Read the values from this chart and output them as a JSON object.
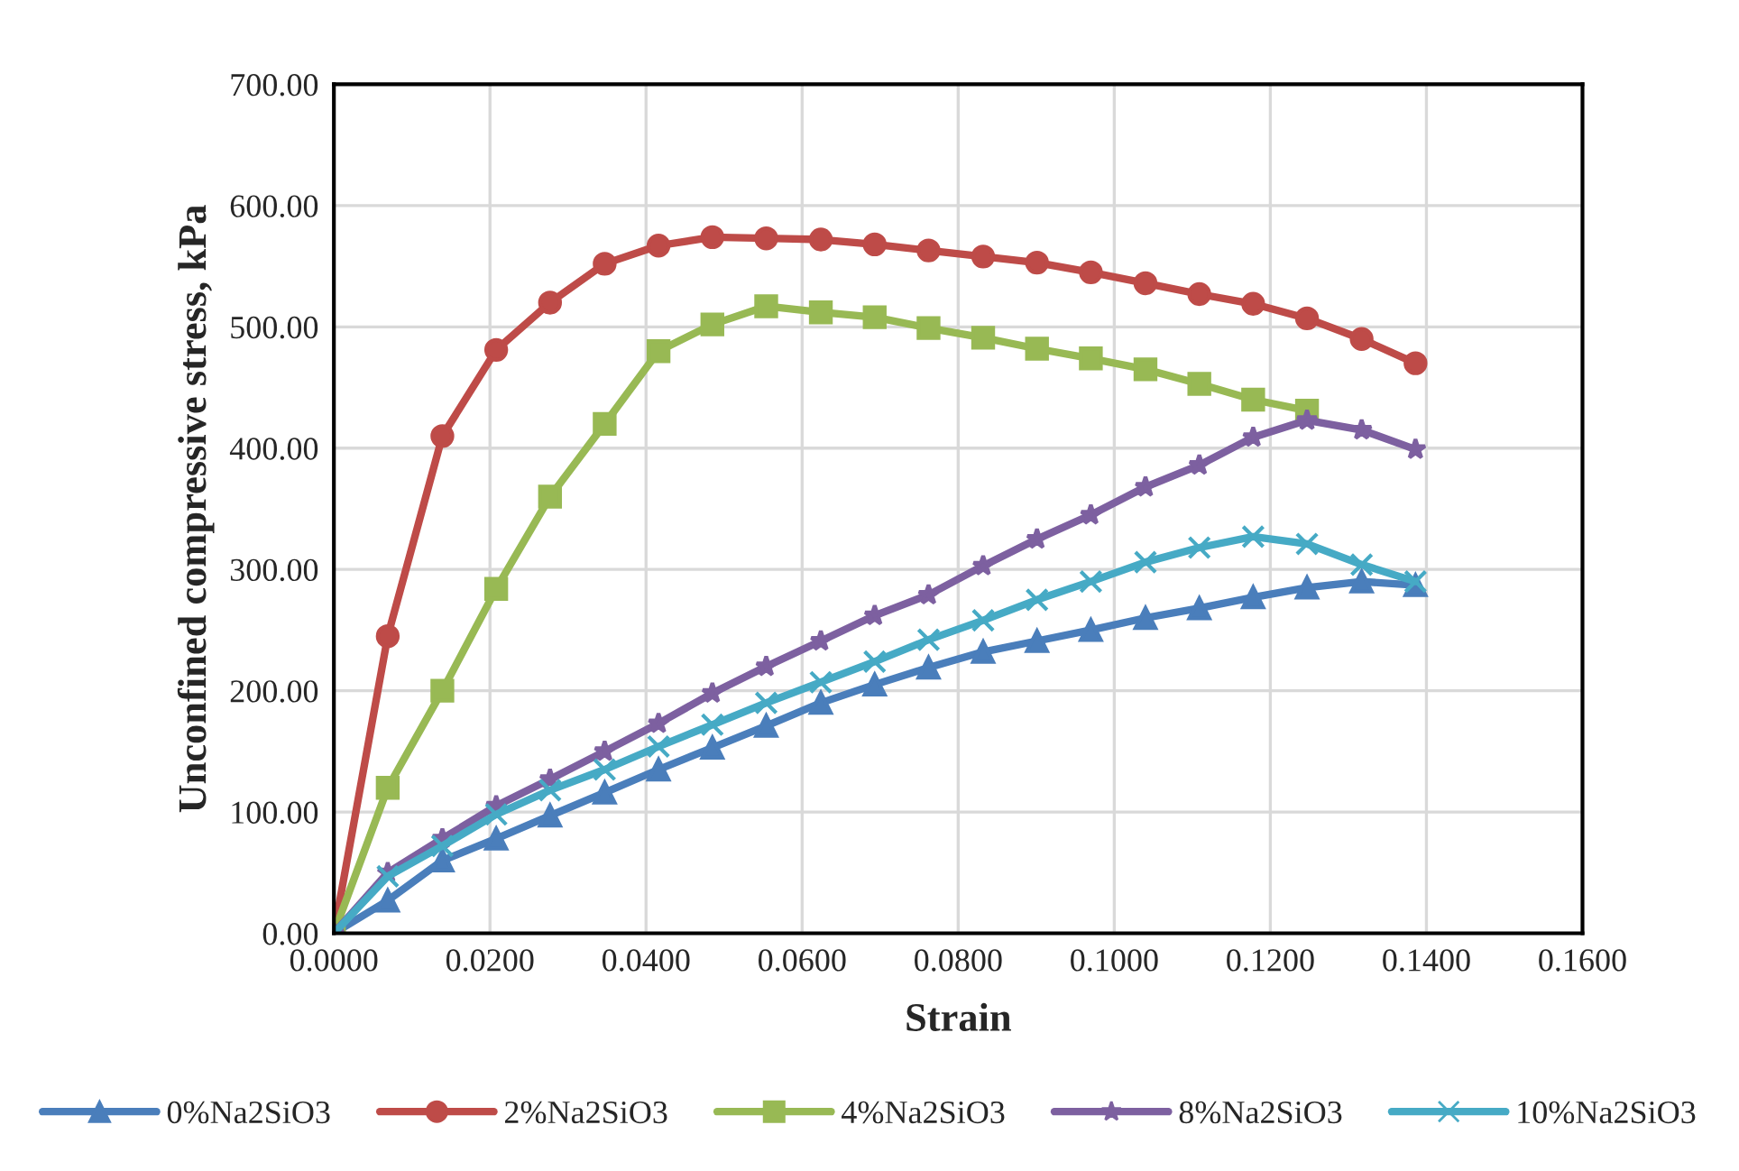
{
  "chart_data": {
    "type": "line",
    "xlabel": "Strain",
    "ylabel": "Unconfined compressive stress, kPa",
    "x": [
      0,
      0.0069,
      0.0139,
      0.0208,
      0.0277,
      0.0347,
      0.0416,
      0.0485,
      0.0554,
      0.0624,
      0.0693,
      0.0762,
      0.0832,
      0.0901,
      0.097,
      0.104,
      0.1109,
      0.1178,
      0.1247,
      0.1317,
      0.1386
    ],
    "series": [
      {
        "name": "0%Na2SiO3",
        "color": "#4a7ebb",
        "marker": "triangle",
        "values": [
          0,
          27,
          60,
          78,
          97,
          116,
          135,
          153,
          171,
          190,
          205,
          219,
          232,
          241,
          250,
          260,
          268,
          277,
          285,
          290,
          287
        ]
      },
      {
        "name": "2%Na2SiO3",
        "color": "#be4b48",
        "marker": "circle",
        "values": [
          0,
          245,
          410,
          481,
          520,
          552,
          567,
          574,
          573,
          572,
          568,
          563,
          558,
          553,
          545,
          536,
          527,
          519,
          507,
          490,
          470
        ]
      },
      {
        "name": "4%Na2SiO3",
        "color": "#98b954",
        "marker": "square",
        "values": [
          0,
          120,
          200,
          284,
          360,
          420,
          480,
          502,
          517,
          512,
          508,
          499,
          491,
          482,
          474,
          465,
          453,
          440,
          431,
          null,
          null
        ]
      },
      {
        "name": "8%Na2SiO3",
        "color": "#7d60a0",
        "marker": "star",
        "values": [
          0,
          50,
          78,
          105,
          127,
          150,
          173,
          198,
          220,
          241,
          262,
          279,
          303,
          325,
          345,
          368,
          386,
          409,
          423,
          415,
          399
        ]
      },
      {
        "name": "10%Na2SiO3",
        "color": "#46aac5",
        "marker": "cross",
        "values": [
          0,
          47,
          72,
          98,
          118,
          135,
          154,
          172,
          190,
          207,
          224,
          242,
          258,
          275,
          290,
          306,
          318,
          327,
          321,
          304,
          290
        ]
      }
    ],
    "xlim": [
      0,
      0.16
    ],
    "xticks": [
      {
        "value": 0,
        "label": "0.0000"
      },
      {
        "value": 0.02,
        "label": "0.0200"
      },
      {
        "value": 0.04,
        "label": "0.0400"
      },
      {
        "value": 0.06,
        "label": "0.0600"
      },
      {
        "value": 0.08,
        "label": "0.0800"
      },
      {
        "value": 0.1,
        "label": "0.1000"
      },
      {
        "value": 0.12,
        "label": "0.1200"
      },
      {
        "value": 0.14,
        "label": "0.1400"
      },
      {
        "value": 0.16,
        "label": "0.1600"
      }
    ],
    "ylim": [
      0,
      700
    ],
    "yticks": [
      {
        "value": 0,
        "label": "0.00"
      },
      {
        "value": 100,
        "label": "100.00"
      },
      {
        "value": 200,
        "label": "200.00"
      },
      {
        "value": 300,
        "label": "300.00"
      },
      {
        "value": 400,
        "label": "400.00"
      },
      {
        "value": 500,
        "label": "500.00"
      },
      {
        "value": 600,
        "label": "600.00"
      },
      {
        "value": 700,
        "label": "700.00"
      }
    ],
    "grid": true,
    "legend": "bottom",
    "line_style": "solid"
  }
}
